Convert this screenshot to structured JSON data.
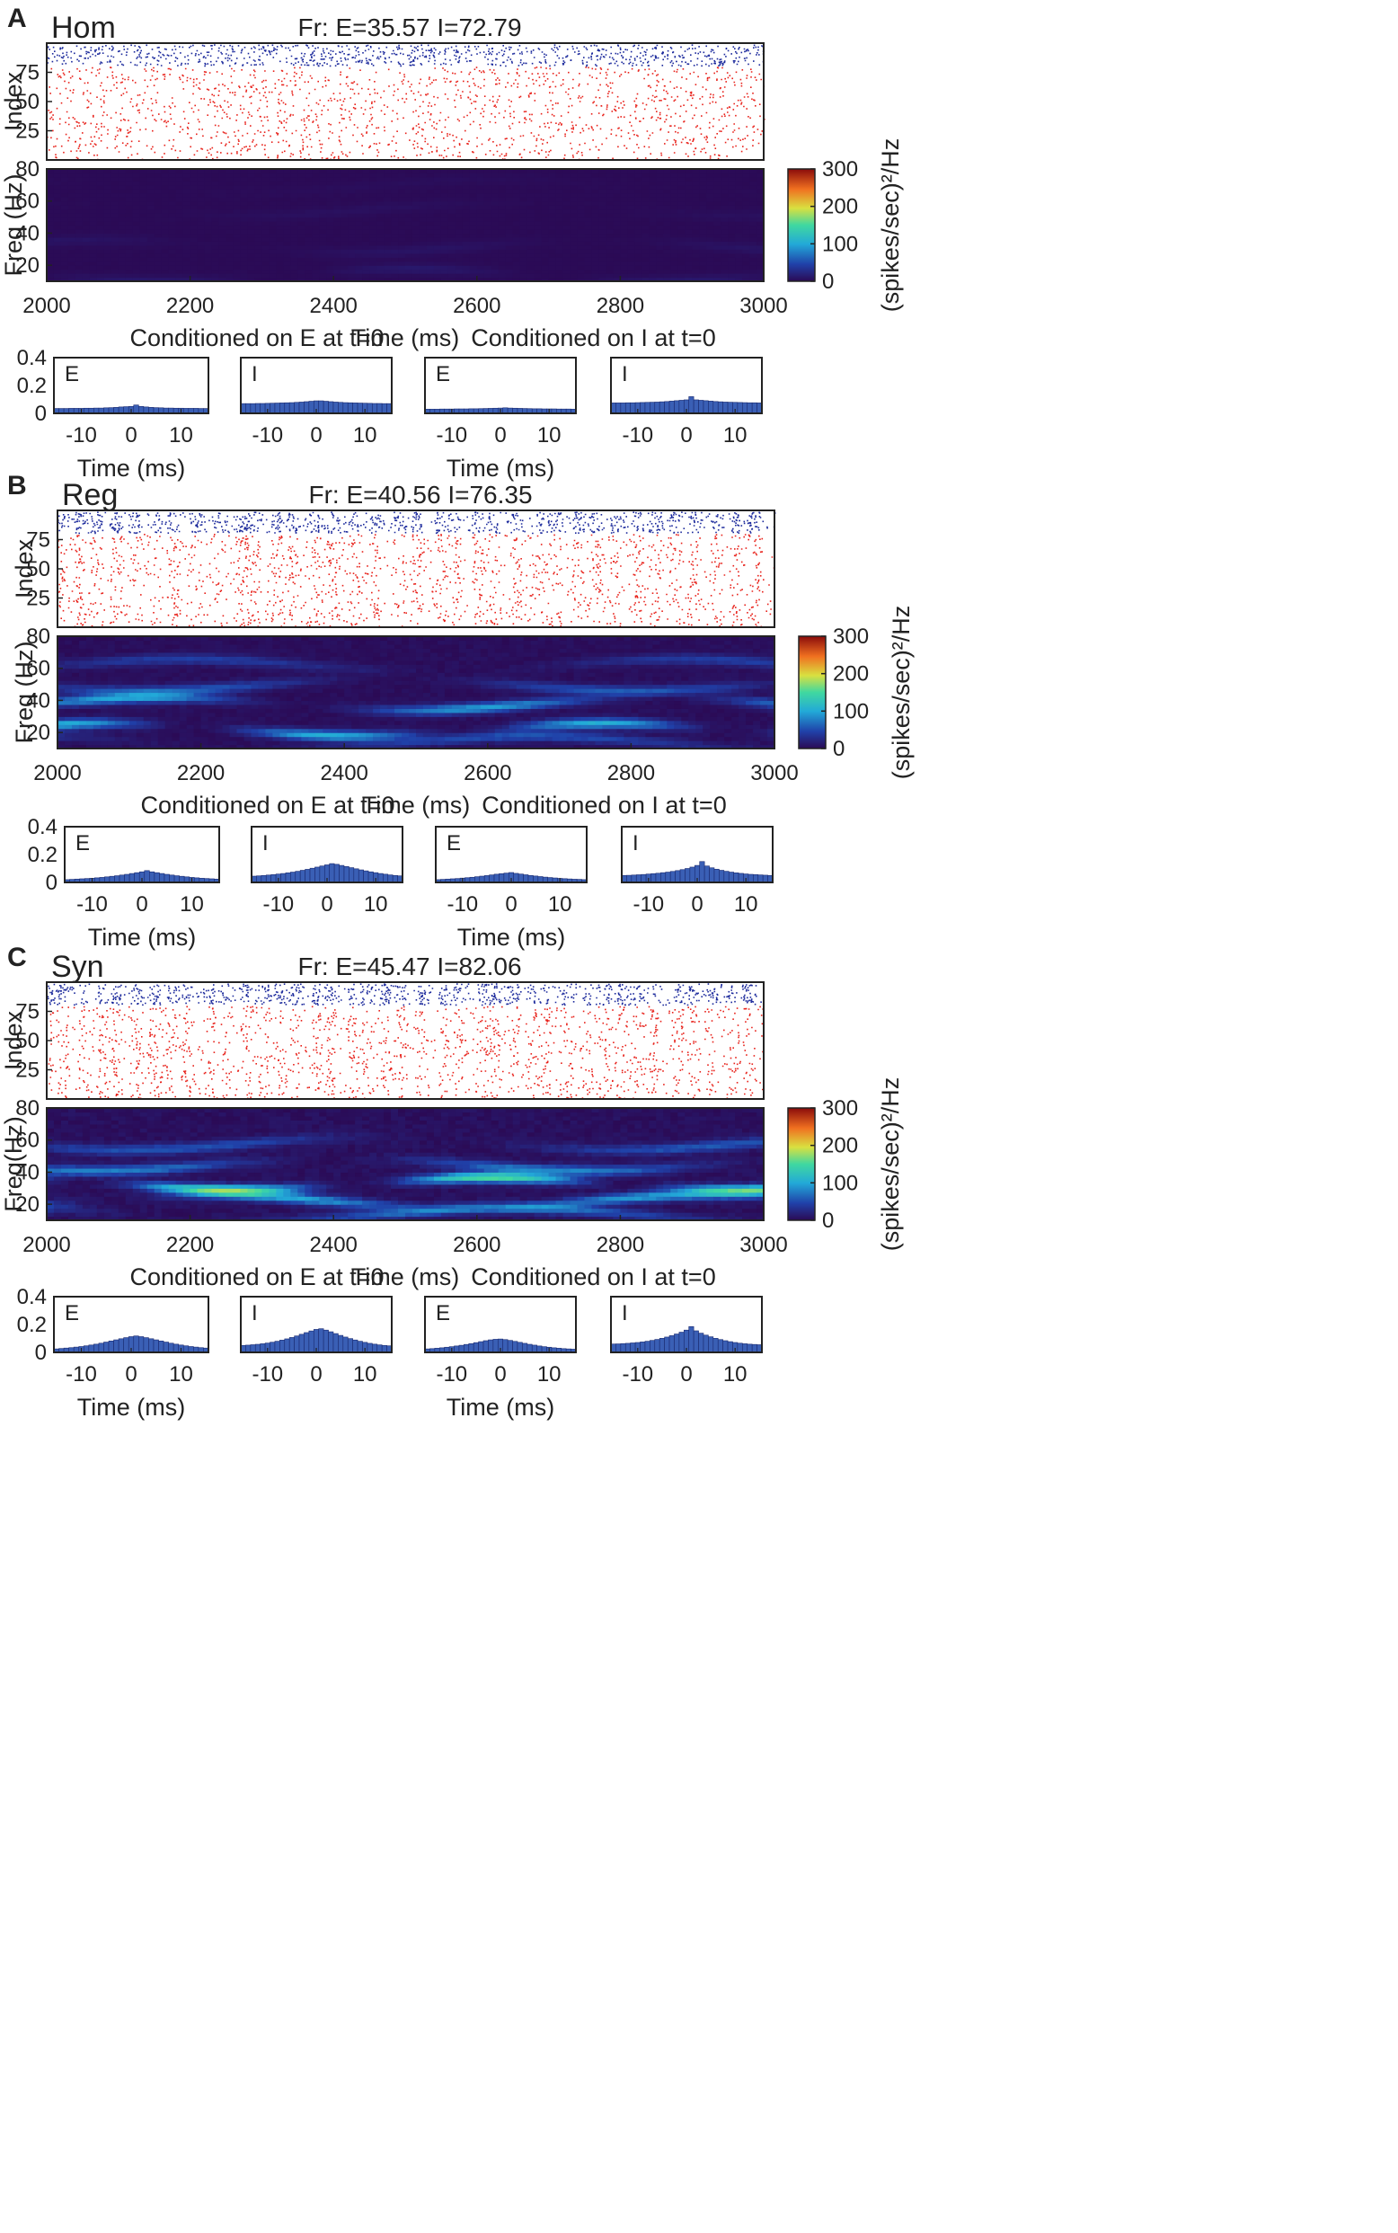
{
  "figure": {
    "panels": [
      {
        "letter": "A",
        "name": "Hom",
        "fr_text": "Fr: E=35.57 I=72.79"
      },
      {
        "letter": "B",
        "name": "Reg",
        "fr_text": "Fr: E=40.56 I=76.35"
      },
      {
        "letter": "C",
        "name": "Syn",
        "fr_text": "Fr: E=45.47 I=82.06"
      }
    ]
  },
  "colors": {
    "exc": "#e8231c",
    "inh": "#1c2a9c",
    "bar": "#3a5fb5",
    "frame": "#222222"
  },
  "chart_data": [
    {
      "panel": "A",
      "type": "scatter",
      "title": "Hom",
      "raster": {
        "ylabel": "Index",
        "yticks": [
          "25",
          "50",
          "75"
        ],
        "ylim": [
          0,
          100
        ],
        "xlim": [
          2000,
          3000
        ],
        "exc_rows": "1-80",
        "inh_rows": "81-100",
        "sync_level": "low"
      },
      "spectrogram": {
        "type": "heatmap",
        "ylabel": "Freq (Hz)",
        "yticks": [
          "20",
          "40",
          "60",
          "80"
        ],
        "ylim": [
          10,
          80
        ],
        "xlabel": "Time (ms)",
        "xticks": [
          "2000",
          "2200",
          "2400",
          "2600",
          "2800",
          "3000"
        ],
        "xlim": [
          2000,
          3000
        ],
        "colorbar": {
          "label": "(spikes/sec)²/Hz",
          "ticks": [
            "0",
            "100",
            "200",
            "300"
          ],
          "range": [
            0,
            300
          ]
        },
        "peak_power": 25
      },
      "conditioned": {
        "headers": [
          "Conditioned on E at t=0",
          "Conditioned on I at t=0"
        ],
        "xlabel": "Time (ms)",
        "xticks": [
          "-10",
          "0",
          "10"
        ],
        "yticks": [
          "0",
          "0.2",
          "0.4"
        ],
        "ylim": [
          0,
          0.4
        ],
        "subplots": [
          {
            "label": "E",
            "values": [
              0.035,
              0.035,
              0.035,
              0.036,
              0.036,
              0.036,
              0.037,
              0.037,
              0.038,
              0.038,
              0.04,
              0.041,
              0.043,
              0.046,
              0.048,
              0.05,
              0.06,
              0.05,
              0.046,
              0.043,
              0.041,
              0.04,
              0.038,
              0.038,
              0.037,
              0.037,
              0.036,
              0.036,
              0.036,
              0.035,
              0.035
            ]
          },
          {
            "label": "I",
            "values": [
              0.07,
              0.07,
              0.07,
              0.071,
              0.071,
              0.072,
              0.073,
              0.074,
              0.075,
              0.076,
              0.077,
              0.079,
              0.081,
              0.084,
              0.087,
              0.09,
              0.09,
              0.087,
              0.084,
              0.081,
              0.079,
              0.077,
              0.076,
              0.075,
              0.074,
              0.073,
              0.072,
              0.071,
              0.071,
              0.07,
              0.07
            ]
          },
          {
            "label": "E",
            "values": [
              0.03,
              0.03,
              0.03,
              0.031,
              0.031,
              0.031,
              0.032,
              0.032,
              0.032,
              0.033,
              0.033,
              0.034,
              0.035,
              0.036,
              0.037,
              0.038,
              0.04,
              0.038,
              0.037,
              0.036,
              0.035,
              0.034,
              0.033,
              0.033,
              0.032,
              0.032,
              0.032,
              0.031,
              0.031,
              0.031,
              0.03
            ]
          },
          {
            "label": "I",
            "values": [
              0.075,
              0.075,
              0.075,
              0.076,
              0.076,
              0.077,
              0.078,
              0.079,
              0.08,
              0.081,
              0.083,
              0.085,
              0.088,
              0.091,
              0.094,
              0.097,
              0.12,
              0.097,
              0.094,
              0.091,
              0.088,
              0.085,
              0.083,
              0.081,
              0.08,
              0.079,
              0.078,
              0.077,
              0.076,
              0.076,
              0.075
            ]
          }
        ]
      }
    },
    {
      "panel": "B",
      "type": "scatter",
      "title": "Reg",
      "raster": {
        "ylabel": "Index",
        "yticks": [
          "25",
          "50",
          "75"
        ],
        "ylim": [
          0,
          100
        ],
        "xlim": [
          2000,
          3000
        ],
        "exc_rows": "1-80",
        "inh_rows": "81-100",
        "sync_level": "medium"
      },
      "spectrogram": {
        "type": "heatmap",
        "ylabel": "Freq (Hz)",
        "yticks": [
          "20",
          "40",
          "60",
          "80"
        ],
        "ylim": [
          10,
          80
        ],
        "xlabel": "Time (ms)",
        "xticks": [
          "2000",
          "2200",
          "2400",
          "2600",
          "2800",
          "3000"
        ],
        "xlim": [
          2000,
          3000
        ],
        "colorbar": {
          "label": "(spikes/sec)²/Hz",
          "ticks": [
            "0",
            "100",
            "200",
            "300"
          ],
          "range": [
            0,
            300
          ]
        },
        "peak_power": 150
      },
      "conditioned": {
        "headers": [
          "Conditioned on E at t=0",
          "Conditioned on I at t=0"
        ],
        "xlabel": "Time (ms)",
        "xticks": [
          "-10",
          "0",
          "10"
        ],
        "yticks": [
          "0",
          "0.2",
          "0.4"
        ],
        "ylim": [
          0,
          0.4
        ],
        "subplots": [
          {
            "label": "E",
            "values": [
              0.02,
              0.022,
              0.024,
              0.026,
              0.028,
              0.03,
              0.033,
              0.036,
              0.04,
              0.044,
              0.048,
              0.053,
              0.058,
              0.064,
              0.07,
              0.076,
              0.085,
              0.076,
              0.07,
              0.064,
              0.058,
              0.053,
              0.048,
              0.044,
              0.04,
              0.036,
              0.033,
              0.03,
              0.028,
              0.026,
              0.024
            ]
          },
          {
            "label": "I",
            "values": [
              0.045,
              0.047,
              0.05,
              0.053,
              0.056,
              0.06,
              0.064,
              0.069,
              0.074,
              0.08,
              0.087,
              0.094,
              0.102,
              0.11,
              0.118,
              0.126,
              0.135,
              0.13,
              0.122,
              0.114,
              0.106,
              0.098,
              0.09,
              0.083,
              0.076,
              0.07,
              0.064,
              0.059,
              0.054,
              0.05,
              0.047
            ]
          },
          {
            "label": "E",
            "values": [
              0.02,
              0.022,
              0.024,
              0.026,
              0.028,
              0.031,
              0.034,
              0.037,
              0.041,
              0.045,
              0.049,
              0.054,
              0.059,
              0.063,
              0.067,
              0.071,
              0.065,
              0.06,
              0.055,
              0.05,
              0.046,
              0.042,
              0.038,
              0.035,
              0.032,
              0.029,
              0.027,
              0.025,
              0.023,
              0.022,
              0.02
            ]
          },
          {
            "label": "I",
            "values": [
              0.05,
              0.051,
              0.053,
              0.055,
              0.057,
              0.06,
              0.063,
              0.066,
              0.07,
              0.074,
              0.079,
              0.085,
              0.092,
              0.1,
              0.11,
              0.122,
              0.15,
              0.118,
              0.105,
              0.095,
              0.087,
              0.08,
              0.074,
              0.069,
              0.065,
              0.061,
              0.058,
              0.056,
              0.054,
              0.052,
              0.05
            ]
          }
        ]
      }
    },
    {
      "panel": "C",
      "type": "scatter",
      "title": "Syn",
      "raster": {
        "ylabel": "Index",
        "yticks": [
          "25",
          "50",
          "75"
        ],
        "ylim": [
          0,
          100
        ],
        "xlim": [
          2000,
          3000
        ],
        "exc_rows": "1-80",
        "inh_rows": "81-100",
        "sync_level": "high"
      },
      "spectrogram": {
        "type": "heatmap",
        "ylabel": "Freq(Hz)",
        "yticks": [
          "20",
          "40",
          "60",
          "80"
        ],
        "ylim": [
          10,
          80
        ],
        "xlabel": "Time (ms)",
        "xticks": [
          "2000",
          "2200",
          "2400",
          "2600",
          "2800",
          "3000"
        ],
        "xlim": [
          2000,
          3000
        ],
        "colorbar": {
          "label": "(spikes/sec)²/Hz",
          "ticks": [
            "0",
            "100",
            "200",
            "300"
          ],
          "range": [
            0,
            300
          ]
        },
        "peak_power": 200
      },
      "conditioned": {
        "headers": [
          "Conditioned on E at t=0",
          "Conditioned on I at t=0"
        ],
        "xlabel": "Time (ms)",
        "xticks": [
          "-10",
          "0",
          "10"
        ],
        "yticks": [
          "0",
          "0.2",
          "0.4"
        ],
        "ylim": [
          0,
          0.4
        ],
        "subplots": [
          {
            "label": "E",
            "values": [
              0.025,
              0.028,
              0.031,
              0.034,
              0.038,
              0.042,
              0.047,
              0.053,
              0.059,
              0.066,
              0.074,
              0.082,
              0.09,
              0.098,
              0.106,
              0.113,
              0.118,
              0.113,
              0.106,
              0.098,
              0.09,
              0.082,
              0.074,
              0.066,
              0.059,
              0.053,
              0.047,
              0.042,
              0.038,
              0.034,
              0.031
            ]
          },
          {
            "label": "I",
            "values": [
              0.05,
              0.052,
              0.055,
              0.058,
              0.062,
              0.067,
              0.073,
              0.08,
              0.088,
              0.097,
              0.107,
              0.118,
              0.13,
              0.142,
              0.154,
              0.165,
              0.17,
              0.16,
              0.148,
              0.135,
              0.122,
              0.11,
              0.099,
              0.089,
              0.08,
              0.072,
              0.065,
              0.059,
              0.054,
              0.05,
              0.047
            ]
          },
          {
            "label": "E",
            "values": [
              0.025,
              0.027,
              0.03,
              0.033,
              0.037,
              0.041,
              0.046,
              0.051,
              0.057,
              0.063,
              0.07,
              0.077,
              0.084,
              0.09,
              0.094,
              0.096,
              0.092,
              0.086,
              0.079,
              0.072,
              0.065,
              0.058,
              0.052,
              0.046,
              0.041,
              0.037,
              0.033,
              0.03,
              0.027,
              0.025,
              0.023
            ]
          },
          {
            "label": "I",
            "values": [
              0.06,
              0.061,
              0.063,
              0.065,
              0.068,
              0.071,
              0.075,
              0.08,
              0.086,
              0.093,
              0.101,
              0.11,
              0.12,
              0.132,
              0.145,
              0.16,
              0.185,
              0.155,
              0.138,
              0.124,
              0.112,
              0.101,
              0.092,
              0.084,
              0.077,
              0.071,
              0.066,
              0.062,
              0.059,
              0.057,
              0.055
            ]
          }
        ]
      }
    }
  ]
}
